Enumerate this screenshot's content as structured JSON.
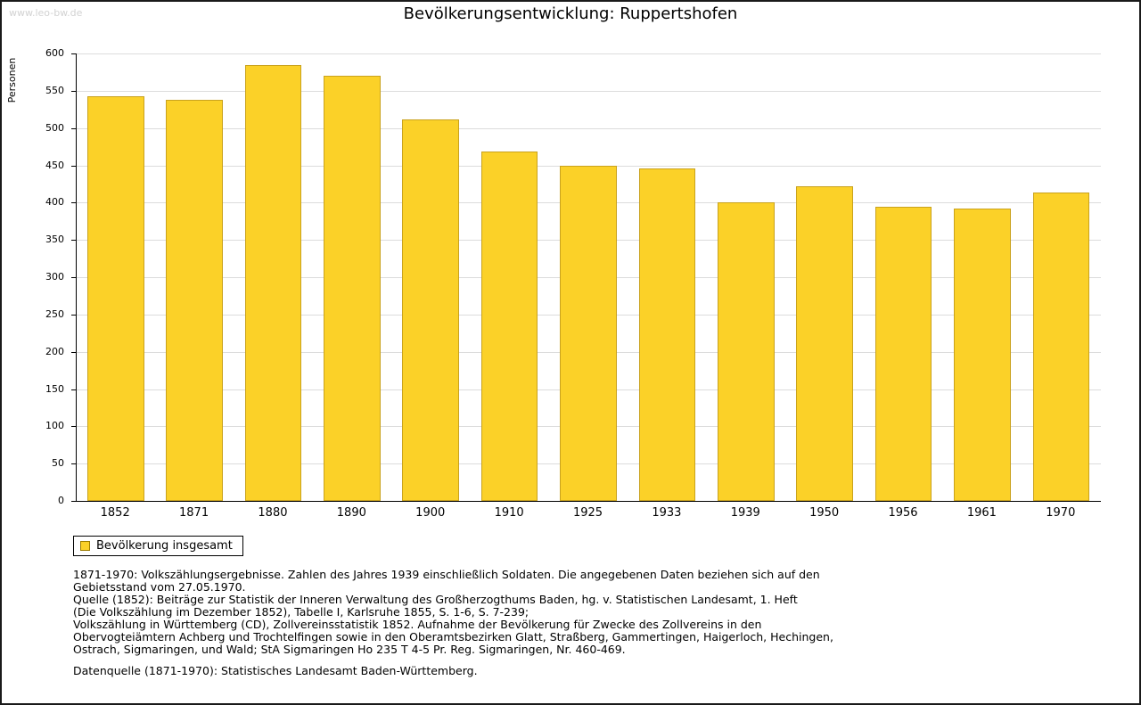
{
  "page": {
    "watermark": "www.leo-bw.de",
    "title": "Bevölkerungsentwicklung: Ruppertshofen"
  },
  "chart_data": {
    "type": "bar",
    "title": "Bevölkerungsentwicklung: Ruppertshofen",
    "xlabel": "",
    "ylabel": "Personen",
    "ylim": [
      0,
      600
    ],
    "yticks": [
      0,
      50,
      100,
      150,
      200,
      250,
      300,
      350,
      400,
      450,
      500,
      550,
      600
    ],
    "grid": true,
    "legend_position": "bottom-left",
    "categories": [
      "1852",
      "1871",
      "1880",
      "1890",
      "1900",
      "1910",
      "1925",
      "1933",
      "1939",
      "1950",
      "1956",
      "1961",
      "1970"
    ],
    "series": [
      {
        "name": "Bevölkerung insgesamt",
        "values": [
          543,
          538,
          584,
          570,
          512,
          469,
          450,
          446,
          400,
          422,
          394,
          392,
          413
        ]
      }
    ],
    "colors": {
      "bar_fill": "#FBD128",
      "bar_border": "#C9A21D"
    }
  },
  "legend": {
    "label": "Bevölkerung insgesamt"
  },
  "notes": {
    "lines": [
      "1871-1970: Volkszählungsergebnisse. Zahlen des Jahres 1939 einschließlich Soldaten. Die angegebenen Daten beziehen sich auf den",
      "Gebietsstand vom 27.05.1970.",
      "Quelle (1852): Beiträge zur Statistik der Inneren Verwaltung des Großherzogthums Baden, hg. v. Statistischen Landesamt, 1. Heft",
      "(Die Volkszählung im Dezember 1852), Tabelle I, Karlsruhe 1855, S. 1-6, S. 7-239;",
      "Volkszählung in Württemberg (CD), Zollvereinsstatistik 1852. Aufnahme der Bevölkerung für Zwecke des Zollvereins in den",
      "Obervogteiämtern Achberg und Trochtelfingen sowie in den Oberamtsbezirken Glatt, Straßberg, Gammertingen, Haigerloch, Hechingen,",
      "Ostrach, Sigmaringen, und Wald; StA Sigmaringen Ho 235 T 4-5 Pr. Reg. Sigmaringen, Nr. 460-469.",
      "",
      "Datenquelle (1871-1970): Statistisches Landesamt Baden-Württemberg."
    ]
  }
}
